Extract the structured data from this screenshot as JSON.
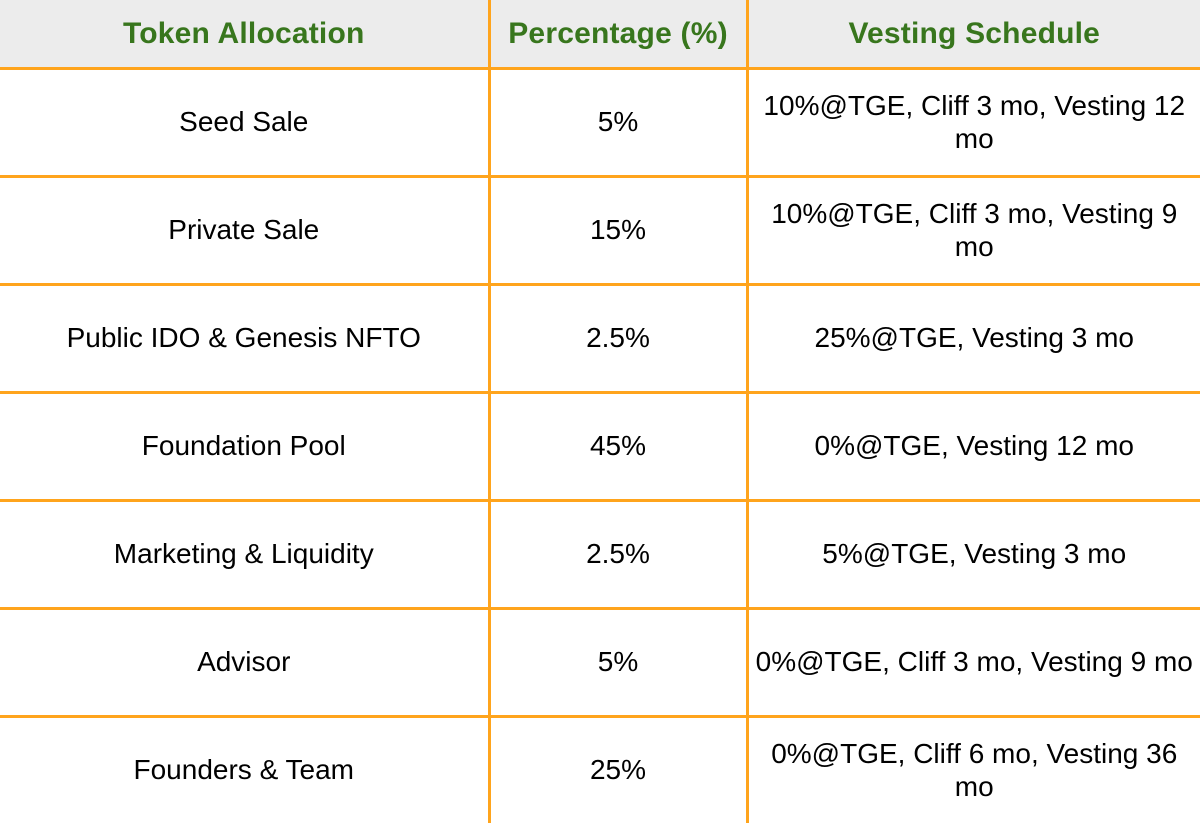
{
  "table": {
    "columns": [
      {
        "id": "allocation",
        "label": "Token Allocation"
      },
      {
        "id": "percentage",
        "label": "Percentage (%)"
      },
      {
        "id": "vesting",
        "label": "Vesting Schedule"
      }
    ],
    "rows": [
      {
        "allocation": "Seed Sale",
        "percentage": "5%",
        "vesting": "10%@TGE, Cliff 3 mo, Vesting 12 mo"
      },
      {
        "allocation": "Private Sale",
        "percentage": "15%",
        "vesting": "10%@TGE, Cliff 3 mo, Vesting 9 mo"
      },
      {
        "allocation": "Public IDO & Genesis NFTO",
        "percentage": "2.5%",
        "vesting": "25%@TGE, Vesting 3 mo"
      },
      {
        "allocation": "Foundation Pool",
        "percentage": "45%",
        "vesting": "0%@TGE, Vesting 12 mo"
      },
      {
        "allocation": "Marketing & Liquidity",
        "percentage": "2.5%",
        "vesting": "5%@TGE, Vesting 3 mo"
      },
      {
        "allocation": "Advisor",
        "percentage": "5%",
        "vesting": "0%@TGE, Cliff 3 mo, Vesting 9 mo"
      },
      {
        "allocation": "Founders & Team",
        "percentage": "25%",
        "vesting": "0%@TGE, Cliff 6 mo, Vesting 36 mo"
      }
    ]
  },
  "colors": {
    "border": "#FFA41C",
    "header_text": "#38761D",
    "header_background": "#ECECEC",
    "body_text": "#000000"
  }
}
